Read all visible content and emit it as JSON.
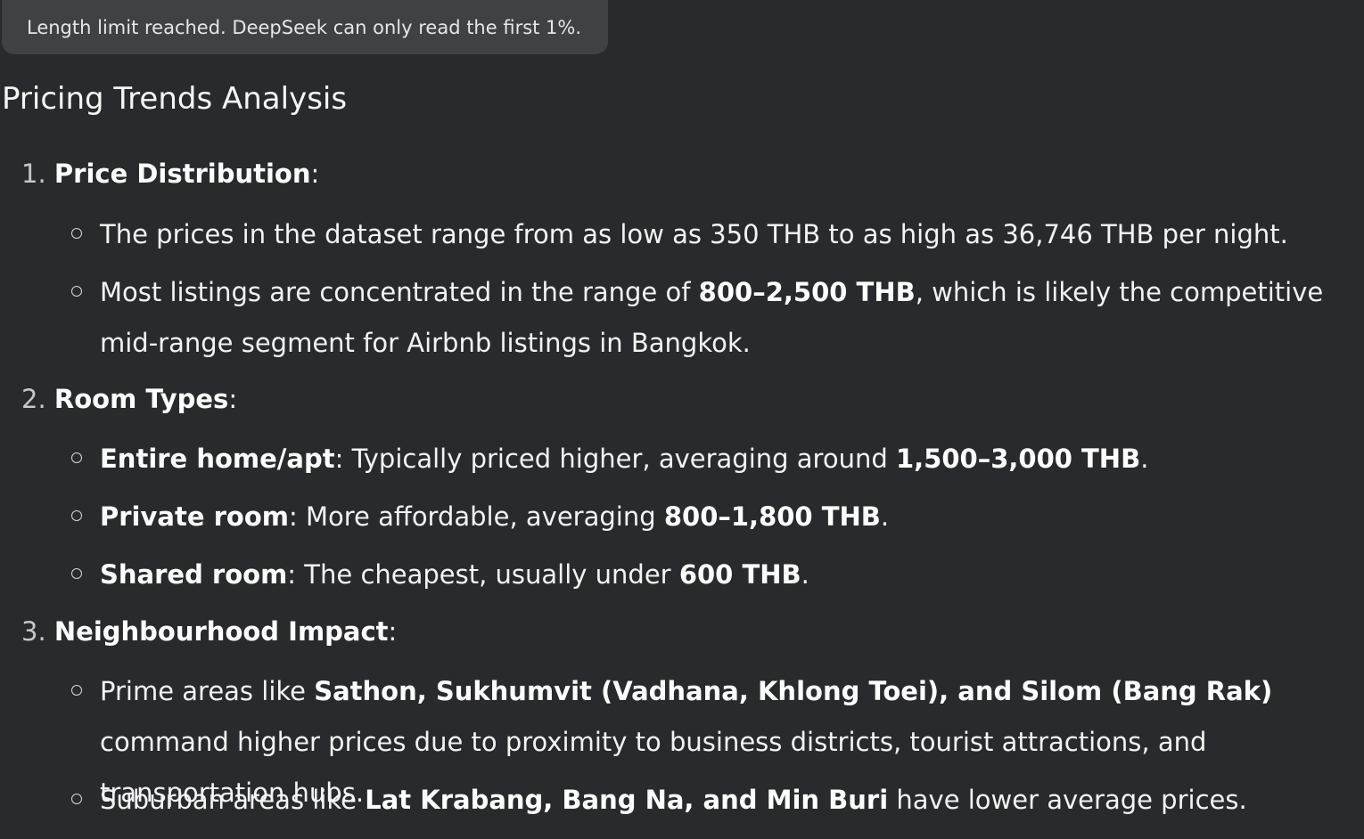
{
  "notice": "Length limit reached. DeepSeek can only read the first 1%.",
  "title": "Pricing Trends Analysis",
  "sections": [
    {
      "num": "1.",
      "head": "Price Distribution",
      "colon": ":",
      "bullets": [
        {
          "segments": [
            {
              "t": "The prices in the dataset range from as low as 350 THB to as high as 36,746 THB per night.",
              "b": false
            }
          ]
        },
        {
          "segments": [
            {
              "t": "Most listings are concentrated in the range of ",
              "b": false
            },
            {
              "t": "800–2,500 THB",
              "b": true
            },
            {
              "t": ", which is likely the competitive mid-range segment for Airbnb listings in Bangkok.",
              "b": false
            }
          ]
        }
      ]
    },
    {
      "num": "2.",
      "head": "Room Types",
      "colon": ":",
      "bullets": [
        {
          "segments": [
            {
              "t": "Entire home/apt",
              "b": true
            },
            {
              "t": ": Typically priced higher, averaging around ",
              "b": false
            },
            {
              "t": "1,500–3,000 THB",
              "b": true
            },
            {
              "t": ".",
              "b": false
            }
          ]
        },
        {
          "segments": [
            {
              "t": "Private room",
              "b": true
            },
            {
              "t": ": More affordable, averaging ",
              "b": false
            },
            {
              "t": "800–1,800 THB",
              "b": true
            },
            {
              "t": ".",
              "b": false
            }
          ]
        },
        {
          "segments": [
            {
              "t": "Shared room",
              "b": true
            },
            {
              "t": ": The cheapest, usually under ",
              "b": false
            },
            {
              "t": "600 THB",
              "b": true
            },
            {
              "t": ".",
              "b": false
            }
          ]
        }
      ]
    },
    {
      "num": "3.",
      "head": "Neighbourhood Impact",
      "colon": ":",
      "bullets": [
        {
          "segments": [
            {
              "t": "Prime areas like ",
              "b": false
            },
            {
              "t": "Sathon, Sukhumvit (Vadhana, Khlong Toei), and Silom (Bang Rak)",
              "b": true
            },
            {
              "t": " command higher prices due to proximity to business districts, tourist attractions, and transportation hubs.",
              "b": false
            }
          ]
        },
        {
          "segments": [
            {
              "t": "Suburban areas like ",
              "b": false
            },
            {
              "t": "Lat Krabang, Bang Na, and Min Buri",
              "b": true
            },
            {
              "t": " have lower average prices.",
              "b": false
            }
          ]
        }
      ]
    }
  ]
}
